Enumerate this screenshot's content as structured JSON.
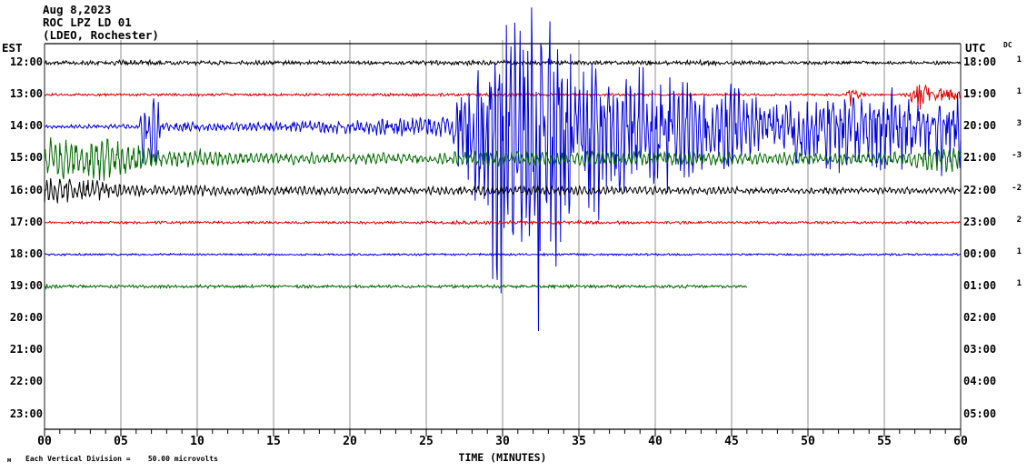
{
  "header": {
    "date": "Aug 8,2023",
    "station": "ROC LPZ LD 01",
    "network": "(LDEO, Rochester)"
  },
  "axes": {
    "left_header": "EST",
    "right_header": "UTC",
    "dc_header": "DC",
    "x_label": "TIME (MINUTES)",
    "x_tick_labels": [
      "00",
      "05",
      "10",
      "15",
      "20",
      "25",
      "30",
      "35",
      "40",
      "45",
      "50",
      "55",
      "60"
    ],
    "x_tick_minutes": [
      0,
      5,
      10,
      15,
      20,
      25,
      30,
      35,
      40,
      45,
      50,
      55,
      60
    ],
    "footnote": "Each Vertical Division =    50.00 microvolts",
    "corner_glyph": "м"
  },
  "chart_data": {
    "type": "line",
    "title": "Helicorder seismogram ROC LPZ LD 01 (LDEO, Rochester) Aug 8,2023",
    "x_axis": {
      "label": "TIME (MINUTES)",
      "range": [
        0,
        60
      ],
      "major_tick": 5,
      "minor_tick": 1
    },
    "grid": {
      "vertical_gridlines_every_minutes": 5,
      "gridlines_on": true
    },
    "vertical_division_microvolts": 50,
    "minutes_per_row": 60,
    "colors": {
      "black": "#000000",
      "red": "#dd0000",
      "blue": "#0000dd",
      "green": "#006800",
      "grid": "#909090",
      "border": "#404040",
      "axis": "#000000"
    },
    "envelope_format": "[minute, upward_amplitude_px, downward_amplitude_px]",
    "rows": [
      {
        "est": "12:00",
        "utc": "18:00",
        "dc": "1",
        "color": "black",
        "end_minute": 60,
        "osc": 0.3,
        "period": 0.22,
        "envelope": [
          [
            0,
            3,
            3
          ],
          [
            3,
            2.5,
            2.5
          ],
          [
            6,
            3.5,
            3.5
          ],
          [
            8,
            2.5,
            2.5
          ],
          [
            12,
            2.5,
            2.5
          ],
          [
            16,
            2.5,
            2.5
          ],
          [
            20,
            2,
            2
          ],
          [
            24,
            2.5,
            2.5
          ],
          [
            28,
            3,
            3
          ],
          [
            33,
            2.5,
            2.5
          ],
          [
            38,
            2.5,
            2.5
          ],
          [
            42,
            3,
            3
          ],
          [
            46,
            2.5,
            2.5
          ],
          [
            50,
            2,
            2
          ],
          [
            55,
            2,
            2
          ],
          [
            60,
            2,
            2
          ]
        ]
      },
      {
        "est": "13:00",
        "utc": "19:00",
        "dc": "1",
        "color": "red",
        "end_minute": 60,
        "osc": 0.25,
        "period": 0.2,
        "envelope": [
          [
            0,
            1.4,
            1.4
          ],
          [
            10,
            1.6,
            1.6
          ],
          [
            20,
            1.4,
            1.4
          ],
          [
            27,
            1.9,
            1.9
          ],
          [
            33,
            1.7,
            1.7
          ],
          [
            40,
            1.4,
            1.4
          ],
          [
            47,
            1.3,
            1.3
          ],
          [
            52.4,
            1.4,
            1.4
          ],
          [
            52.8,
            8,
            14
          ],
          [
            53.2,
            6,
            8
          ],
          [
            53.6,
            2,
            2
          ],
          [
            54.5,
            1.4,
            1.4
          ],
          [
            56.3,
            1.5,
            1.5
          ],
          [
            56.7,
            8,
            8
          ],
          [
            57.1,
            20,
            22
          ],
          [
            57.7,
            12,
            10
          ],
          [
            58.3,
            8,
            8
          ],
          [
            58.9,
            9,
            7
          ],
          [
            59.5,
            7,
            7
          ],
          [
            60,
            6,
            6
          ]
        ]
      },
      {
        "est": "14:00",
        "utc": "20:00",
        "dc": "3",
        "color": "blue",
        "end_minute": 60,
        "osc": 0.45,
        "period": 0.28,
        "envelope": [
          [
            0,
            2,
            2
          ],
          [
            3,
            2.5,
            2.5
          ],
          [
            6.2,
            3,
            3
          ],
          [
            6.45,
            58,
            68
          ],
          [
            6.7,
            14,
            14
          ],
          [
            7.25,
            58,
            70
          ],
          [
            7.6,
            8,
            8
          ],
          [
            8,
            6,
            6
          ],
          [
            12,
            5,
            5
          ],
          [
            16,
            6,
            6
          ],
          [
            20,
            9,
            9
          ],
          [
            24,
            11,
            11
          ],
          [
            26.5,
            13,
            13
          ],
          [
            27.2,
            40,
            55
          ],
          [
            28,
            80,
            120
          ],
          [
            29,
            100,
            160
          ],
          [
            30,
            125,
            210
          ],
          [
            30.6,
            150,
            255
          ],
          [
            33.3,
            150,
            255
          ],
          [
            34,
            100,
            160
          ],
          [
            35,
            78,
            120
          ],
          [
            36,
            88,
            130
          ],
          [
            36.8,
            60,
            95
          ],
          [
            37.5,
            75,
            105
          ],
          [
            38.3,
            55,
            80
          ],
          [
            39,
            70,
            100
          ],
          [
            40,
            58,
            80
          ],
          [
            40.8,
            72,
            95
          ],
          [
            41.6,
            55,
            70
          ],
          [
            42.5,
            62,
            58
          ],
          [
            43.5,
            52,
            50
          ],
          [
            44.5,
            58,
            55
          ],
          [
            45.5,
            50,
            46
          ],
          [
            46.5,
            35,
            32
          ],
          [
            47.5,
            27,
            26
          ],
          [
            48.5,
            32,
            36
          ],
          [
            49.5,
            40,
            52
          ],
          [
            50.5,
            34,
            46
          ],
          [
            51.5,
            40,
            58
          ],
          [
            52.5,
            44,
            52
          ],
          [
            53.5,
            34,
            46
          ],
          [
            54.5,
            40,
            55
          ],
          [
            55.5,
            44,
            58
          ],
          [
            56.5,
            40,
            52
          ],
          [
            57.5,
            34,
            48
          ],
          [
            58.5,
            40,
            58
          ],
          [
            59.2,
            36,
            50
          ],
          [
            60,
            40,
            55
          ]
        ]
      },
      {
        "est": "15:00",
        "utc": "21:00",
        "dc": "-3",
        "color": "green",
        "end_minute": 60,
        "osc": 0.55,
        "period": 0.33,
        "envelope": [
          [
            0,
            24,
            24
          ],
          [
            1,
            27,
            27
          ],
          [
            2,
            24,
            24
          ],
          [
            3,
            23,
            23
          ],
          [
            4,
            26,
            26
          ],
          [
            5,
            22,
            22
          ],
          [
            6,
            18,
            18
          ],
          [
            7,
            14,
            14
          ],
          [
            8,
            11,
            11
          ],
          [
            9,
            10,
            10
          ],
          [
            10,
            12,
            12
          ],
          [
            11,
            10,
            10
          ],
          [
            12,
            8,
            8
          ],
          [
            13,
            7,
            7
          ],
          [
            15,
            6,
            6
          ],
          [
            17,
            8,
            8
          ],
          [
            19,
            6,
            6
          ],
          [
            22,
            7,
            7
          ],
          [
            25,
            6,
            6
          ],
          [
            27,
            8,
            8
          ],
          [
            29,
            9,
            9
          ],
          [
            31,
            9,
            9
          ],
          [
            33,
            8,
            8
          ],
          [
            35,
            9,
            9
          ],
          [
            37,
            8,
            8
          ],
          [
            39,
            9,
            9
          ],
          [
            41,
            8,
            8
          ],
          [
            43,
            8,
            8
          ],
          [
            45,
            9,
            9
          ],
          [
            47,
            7,
            7
          ],
          [
            49,
            8,
            8
          ],
          [
            51,
            7,
            7
          ],
          [
            53,
            8,
            8
          ],
          [
            55,
            8,
            8
          ],
          [
            56,
            9,
            9
          ],
          [
            57,
            10,
            11
          ],
          [
            58,
            12,
            14
          ],
          [
            59,
            13,
            18
          ],
          [
            60,
            14,
            22
          ]
        ]
      },
      {
        "est": "16:00",
        "utc": "22:00",
        "dc": "-2",
        "color": "black",
        "end_minute": 60,
        "osc": 0.55,
        "period": 0.3,
        "envelope": [
          [
            0,
            14,
            14
          ],
          [
            0.5,
            19,
            19
          ],
          [
            1,
            17,
            17
          ],
          [
            1.5,
            18,
            18
          ],
          [
            2,
            15,
            15
          ],
          [
            3,
            13,
            13
          ],
          [
            4,
            11,
            11
          ],
          [
            5,
            8,
            8
          ],
          [
            6,
            7,
            7
          ],
          [
            8,
            6,
            6
          ],
          [
            10,
            7,
            7
          ],
          [
            12,
            5,
            5
          ],
          [
            14,
            6,
            6
          ],
          [
            16,
            5,
            5
          ],
          [
            18,
            5,
            5
          ],
          [
            20,
            4.5,
            4.5
          ],
          [
            22,
            5,
            5
          ],
          [
            24,
            4,
            4
          ],
          [
            26,
            5,
            5
          ],
          [
            28,
            6,
            6
          ],
          [
            30,
            5,
            5
          ],
          [
            32,
            6,
            6
          ],
          [
            34,
            5,
            5
          ],
          [
            36,
            6,
            6
          ],
          [
            38,
            5,
            5
          ],
          [
            40,
            5,
            5
          ],
          [
            42,
            4,
            4
          ],
          [
            44,
            5,
            5
          ],
          [
            46,
            4,
            4
          ],
          [
            48,
            4,
            4
          ],
          [
            50,
            3.5,
            3.5
          ],
          [
            52,
            4,
            4
          ],
          [
            54,
            3.5,
            3.5
          ],
          [
            56,
            4,
            4
          ],
          [
            58,
            3.5,
            3.5
          ],
          [
            60,
            3.5,
            3.5
          ]
        ]
      },
      {
        "est": "17:00",
        "utc": "23:00",
        "dc": "2",
        "color": "red",
        "end_minute": 60,
        "osc": 0.3,
        "period": 0.22,
        "envelope": [
          [
            0,
            1.4,
            1.4
          ],
          [
            8,
            1.6,
            1.6
          ],
          [
            16,
            1.4,
            1.4
          ],
          [
            24,
            1.6,
            1.6
          ],
          [
            28,
            2.3,
            2.3
          ],
          [
            33,
            2.1,
            2.1
          ],
          [
            38,
            1.9,
            1.9
          ],
          [
            44,
            1.6,
            1.6
          ],
          [
            50,
            1.5,
            1.5
          ],
          [
            56,
            1.7,
            1.7
          ],
          [
            60,
            1.6,
            1.6
          ]
        ]
      },
      {
        "est": "18:00",
        "utc": "00:00",
        "dc": "1",
        "color": "blue",
        "end_minute": 60,
        "osc": 0.25,
        "period": 0.2,
        "envelope": [
          [
            0,
            1.3,
            1.3
          ],
          [
            15,
            1.1,
            1.1
          ],
          [
            30,
            1.3,
            1.3
          ],
          [
            45,
            1.1,
            1.1
          ],
          [
            60,
            1.2,
            1.2
          ]
        ]
      },
      {
        "est": "19:00",
        "utc": "01:00",
        "dc": "1",
        "color": "green",
        "end_minute": 46,
        "osc": 0.3,
        "period": 0.22,
        "envelope": [
          [
            0,
            4,
            4
          ],
          [
            0.4,
            2,
            2
          ],
          [
            5,
            1.8,
            1.8
          ],
          [
            10,
            2,
            2
          ],
          [
            20,
            1.8,
            1.8
          ],
          [
            30,
            2,
            2
          ],
          [
            40,
            1.8,
            1.8
          ],
          [
            46,
            1.8,
            1.8
          ]
        ]
      },
      {
        "est": "20:00",
        "utc": "02:00",
        "dc": null,
        "color": null,
        "end_minute": 0,
        "osc": 0,
        "period": 0.25,
        "envelope": []
      },
      {
        "est": "21:00",
        "utc": "03:00",
        "dc": null,
        "color": null,
        "end_minute": 0,
        "osc": 0,
        "period": 0.25,
        "envelope": []
      },
      {
        "est": "22:00",
        "utc": "04:00",
        "dc": null,
        "color": null,
        "end_minute": 0,
        "osc": 0,
        "period": 0.25,
        "envelope": []
      },
      {
        "est": "23:00",
        "utc": "05:00",
        "dc": null,
        "color": null,
        "end_minute": 0,
        "osc": 0,
        "period": 0.25,
        "envelope": []
      }
    ]
  }
}
